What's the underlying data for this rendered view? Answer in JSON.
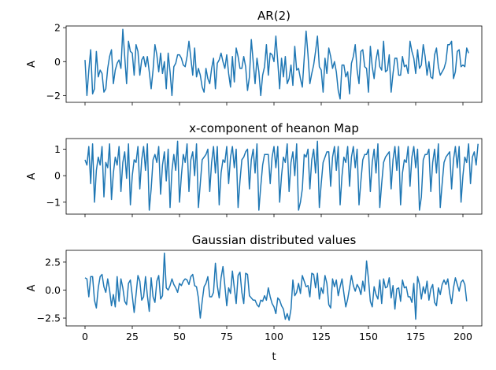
{
  "chart_data": [
    {
      "type": "line",
      "title": "AR(2)",
      "xlabel": "",
      "ylabel": "A",
      "xlim": [
        -10,
        210
      ],
      "ylim": [
        -2.4,
        2.1
      ],
      "xticks": [
        0,
        25,
        50,
        75,
        100,
        125,
        150,
        175,
        200
      ],
      "xtick_labels_visible": false,
      "yticks": [
        -2,
        0,
        2
      ],
      "yticklabels": [
        "−2",
        "0",
        "2"
      ],
      "grid": false,
      "color": "#1f77b4",
      "values": [
        0.1,
        -2.0,
        -0.5,
        0.7,
        -1.9,
        -1.6,
        0.6,
        -0.9,
        -0.5,
        -0.7,
        -1.8,
        -1.6,
        -0.4,
        0.3,
        0.7,
        -1.3,
        -0.5,
        -0.1,
        0.1,
        -0.4,
        1.9,
        0.3,
        -1.3,
        1.2,
        0.6,
        0.5,
        -0.8,
        1.0,
        0.6,
        -0.8,
        0.1,
        0.3,
        -0.3,
        0.3,
        -0.6,
        -1.6,
        -0.5,
        1.0,
        0.4,
        -0.6,
        0.5,
        -0.7,
        0.0,
        -1.6,
        0.5,
        -0.6,
        -2.0,
        -0.3,
        -0.1,
        0.4,
        0.4,
        0.2,
        -0.2,
        -0.3,
        0.3,
        1.2,
        0.2,
        -0.8,
        0.8,
        -0.9,
        -0.4,
        -0.8,
        -1.5,
        -1.8,
        -0.4,
        -1.0,
        -1.3,
        -0.4,
        0.2,
        -1.6,
        -0.1,
        0.1,
        0.5,
        0.0,
        -0.4,
        0.4,
        -0.7,
        -1.5,
        0.3,
        -1.2,
        0.8,
        0.3,
        -0.4,
        -0.4,
        0.3,
        -0.3,
        -1.7,
        -0.9,
        1.3,
        0.0,
        -1.3,
        0.2,
        -0.6,
        -2.0,
        -0.8,
        -0.3,
        1.0,
        -0.8,
        0.5,
        0.4,
        0.0,
        1.5,
        0.0,
        -1.6,
        0.2,
        -0.9,
        0.3,
        -1.3,
        -1.0,
        -0.2,
        -1.4,
        0.9,
        -0.5,
        -0.4,
        -1.0,
        -1.5,
        0.2,
        1.8,
        0.4,
        -1.3,
        -0.7,
        -0.2,
        0.6,
        1.5,
        -0.3,
        -0.5,
        -1.8,
        0.2,
        -0.7,
        0.8,
        0.3,
        -0.4,
        0.0,
        -0.6,
        -1.7,
        -2.2,
        -0.2,
        -0.2,
        -0.9,
        -0.6,
        -1.9,
        -0.1,
        0.3,
        1.0,
        -0.5,
        -1.3,
        0.6,
        0.7,
        -0.3,
        -0.4,
        -1.8,
        0.9,
        -0.3,
        -1.0,
        0.1,
        0.7,
        -0.3,
        -0.5,
        1.2,
        -0.6,
        -0.5,
        0.4,
        -1.8,
        -0.7,
        0.2,
        0.2,
        -0.8,
        -0.8,
        0.3,
        -0.3,
        -0.2,
        -0.7,
        1.2,
        0.6,
        0.2,
        -0.7,
        0.7,
        -0.4,
        -0.2,
        1.0,
        0.3,
        -0.8,
        0.0,
        -0.9,
        -1.0,
        0.4,
        0.8,
        -0.3,
        -0.8,
        -0.6,
        -0.4,
        0.0,
        1.0,
        1.0,
        1.2,
        -1.0,
        -0.6,
        0.6,
        0.7,
        -0.3,
        -0.2,
        -0.3,
        0.8,
        0.5
      ]
    },
    {
      "type": "line",
      "title": "x-component of heanon Map",
      "xlabel": "",
      "ylabel": "A",
      "xlim": [
        -10,
        210
      ],
      "ylim": [
        -1.45,
        1.4
      ],
      "xticks": [
        0,
        25,
        50,
        75,
        100,
        125,
        150,
        175,
        200
      ],
      "xtick_labels_visible": false,
      "yticks": [
        -1,
        0,
        1
      ],
      "yticklabels": [
        "−1",
        "0",
        "1"
      ],
      "grid": false,
      "color": "#1f77b4",
      "values": [
        0.6,
        0.4,
        1.1,
        -0.3,
        1.2,
        -1.0,
        0.2,
        0.7,
        0.4,
        1.1,
        -0.8,
        0.5,
        0.3,
        1.2,
        -0.9,
        0.1,
        0.7,
        0.4,
        1.1,
        -0.6,
        0.5,
        0.9,
        -0.1,
        1.2,
        -1.1,
        0.0,
        0.6,
        0.5,
        1.1,
        -0.5,
        0.6,
        1.1,
        0.2,
        1.2,
        -1.3,
        -0.5,
        0.6,
        0.8,
        0.5,
        1.1,
        -0.7,
        0.4,
        0.9,
        -0.2,
        1.0,
        -1.2,
        0.2,
        0.8,
        0.2,
        1.3,
        -1.0,
        0.0,
        0.8,
        0.5,
        1.2,
        -0.6,
        0.6,
        0.9,
        0.0,
        1.2,
        -1.2,
        -0.3,
        0.6,
        0.7,
        0.8,
        1.0,
        -0.6,
        0.5,
        1.1,
        0.1,
        1.1,
        -1.1,
        0.1,
        0.6,
        0.5,
        1.1,
        -0.3,
        0.7,
        1.1,
        0.3,
        1.0,
        -1.2,
        -0.2,
        0.6,
        0.7,
        0.9,
        1.0,
        -0.5,
        0.6,
        1.0,
        0.1,
        1.2,
        -1.3,
        -0.4,
        0.4,
        0.8,
        0.8,
        0.8,
        -0.3,
        0.7,
        1.1,
        0.3,
        1.1,
        -1.0,
        0.0,
        0.7,
        0.5,
        1.2,
        -0.6,
        0.5,
        0.9,
        0.0,
        1.2,
        -1.3,
        -1.0,
        -0.5,
        0.8,
        0.7,
        1.0,
        -0.5,
        0.6,
        1.0,
        0.1,
        1.3,
        -1.2,
        -0.3,
        0.5,
        0.7,
        0.9,
        0.9,
        -0.4,
        0.7,
        1.1,
        0.2,
        1.1,
        -1.1,
        0.0,
        0.7,
        0.5,
        1.1,
        -0.4,
        0.7,
        1.1,
        0.3,
        1.0,
        -1.1,
        -0.2,
        0.6,
        0.8,
        0.8,
        1.0,
        -0.6,
        0.5,
        1.0,
        0.1,
        1.2,
        -1.2,
        -0.3,
        0.5,
        0.7,
        0.8,
        0.9,
        -0.5,
        0.6,
        1.1,
        0.2,
        1.1,
        -1.1,
        0.1,
        0.6,
        0.5,
        1.1,
        -0.4,
        0.7,
        1.1,
        0.3,
        1.0,
        -1.3,
        -0.8,
        0.6,
        0.8,
        0.8,
        1.0,
        -0.6,
        0.5,
        1.0,
        0.1,
        1.2,
        -1.2,
        -0.3,
        0.5,
        0.7,
        0.8,
        0.9,
        -0.5,
        0.6,
        1.1,
        0.3,
        1.1,
        -1.0,
        0.0,
        0.7,
        0.5,
        1.2,
        -0.3,
        0.7,
        0.9,
        0.4,
        1.2
      ]
    },
    {
      "type": "line",
      "title": "Gaussian distributed values",
      "xlabel": "t",
      "ylabel": "A",
      "xlim": [
        -10,
        210
      ],
      "ylim": [
        -3.2,
        3.55
      ],
      "xticks": [
        0,
        25,
        50,
        75,
        100,
        125,
        150,
        175,
        200
      ],
      "xticklabels": [
        "0",
        "25",
        "50",
        "75",
        "100",
        "125",
        "150",
        "175",
        "200"
      ],
      "xtick_labels_visible": true,
      "yticks": [
        -2.5,
        0.0,
        2.5
      ],
      "yticklabels": [
        "−2.5",
        "0.0",
        "2.5"
      ],
      "grid": false,
      "color": "#1f77b4",
      "values": [
        1.1,
        1.0,
        -0.6,
        1.2,
        1.2,
        -0.9,
        -1.6,
        0.2,
        1.2,
        1.4,
        0.3,
        -0.2,
        1.0,
        0.0,
        -1.4,
        -0.4,
        -1.5,
        1.2,
        -1.0,
        1.0,
        0.2,
        -1.0,
        -1.3,
        0.6,
        0.9,
        -0.5,
        -2.0,
        -0.4,
        1.3,
        0.8,
        -0.9,
        -0.6,
        1.2,
        -0.5,
        -1.9,
        1.1,
        -0.6,
        -1.1,
        0.8,
        1.3,
        -0.8,
        -0.5,
        3.3,
        0.2,
        0.0,
        0.4,
        1.0,
        0.5,
        0.2,
        -0.2,
        0.6,
        0.4,
        0.8,
        1.0,
        0.9,
        0.5,
        1.2,
        1.4,
        0.4,
        0.3,
        -0.7,
        -2.5,
        -1.0,
        0.3,
        0.6,
        1.2,
        -0.6,
        -0.6,
        -0.2,
        2.4,
        0.4,
        -0.7,
        1.1,
        2.1,
        0.4,
        -1.4,
        0.2,
        -0.3,
        1.7,
        0.2,
        -1.2,
        1.3,
        1.6,
        -0.2,
        -1.2,
        1.5,
        1.4,
        -0.5,
        -0.7,
        -0.9,
        -0.9,
        -1.3,
        -1.5,
        -0.9,
        -1.0,
        -0.5,
        -0.9,
        0.2,
        -0.6,
        -1.2,
        -1.5,
        -2.1,
        -0.7,
        -0.9,
        -1.4,
        -1.7,
        -2.6,
        -2.1,
        -2.7,
        -1.7,
        0.9,
        -0.5,
        -0.2,
        0.6,
        -0.3,
        1.3,
        0.8,
        0.3,
        0.4,
        -0.6,
        1.5,
        1.4,
        0.2,
        1.5,
        -0.8,
        0.2,
        -0.3,
        1.3,
        0.6,
        -1.3,
        -1.6,
        1.0,
        0.3,
        0.9,
        -0.5,
        0.3,
        1.0,
        -0.3,
        -1.5,
        -0.8,
        0.2,
        1.3,
        0.4,
        -0.1,
        0.5,
        0.2,
        -0.4,
        0.8,
        -0.1,
        2.6,
        1.0,
        -1.0,
        -1.5,
        0.3,
        -0.4,
        -0.8,
        0.9,
        -1.2,
        1.0,
        0.2,
        0.3,
        1.1,
        -0.7,
        0.4,
        -1.7,
        0.1,
        0.2,
        -1.0,
        0.9,
        0.2,
        0.3,
        -0.6,
        -0.6,
        -1.1,
        0.6,
        -2.6,
        1.2,
        0.5,
        -0.8,
        0.3,
        -0.3,
        0.8,
        -0.9,
        0.1,
        0.5,
        -1.1,
        -1.4,
        0.2,
        -0.4,
        0.5,
        0.9,
        0.5,
        1.0,
        -0.3,
        -1.2,
        0.2,
        1.1,
        0.5,
        -0.1,
        0.7,
        0.9,
        0.5,
        -1.0
      ]
    }
  ]
}
